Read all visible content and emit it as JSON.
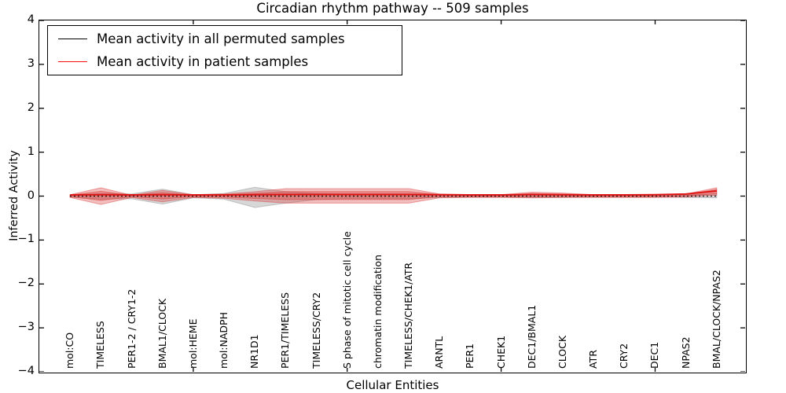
{
  "chart_data": {
    "type": "line",
    "title": "Circadian rhythm pathway -- 509 samples",
    "xlabel": "Cellular Entities",
    "ylabel": "Inferred Activity",
    "ylim": [
      -4,
      4
    ],
    "yticks": [
      4,
      3,
      2,
      1,
      0,
      -1,
      -2,
      -3,
      -4
    ],
    "x_minor_tick_positions": [
      5,
      10,
      15,
      20
    ],
    "grid": false,
    "legend_position": "upper left",
    "categories": [
      "mol:CO",
      "TIMELESS",
      "PER1-2 / CRY1-2",
      "BMAL1/CLOCK",
      "mol:HEME",
      "mol:NADPH",
      "NR1D1",
      "PER1/TIMELESS",
      "TIMELESS/CRY2",
      "S phase of mitotic cell cycle",
      "chromatin modification",
      "TIMELESS/CHEK1/ATR",
      "ARNTL",
      "PER1",
      "CHEK1",
      "DEC1/BMAL1",
      "CLOCK",
      "ATR",
      "CRY2",
      "DEC1",
      "NPAS2",
      "BMAL/CLOCK/NPAS2"
    ],
    "series": [
      {
        "name": "Mean activity in all permuted samples",
        "color": "#000000",
        "line_style": "dotted",
        "values": [
          0,
          0,
          0,
          0,
          0,
          0,
          0,
          0,
          0,
          0,
          0,
          0,
          0,
          0,
          0,
          0,
          0,
          0,
          0,
          0,
          0,
          0
        ]
      },
      {
        "name": "Mean activity in patient samples",
        "color": "#e01212",
        "line_style": "solid",
        "values": [
          0.01,
          0.015,
          0.01,
          0.015,
          0.01,
          0.01,
          0.015,
          0.02,
          0.02,
          0.02,
          0.02,
          0.02,
          0.015,
          0.01,
          0.01,
          0.02,
          0.015,
          0.01,
          0.01,
          0.015,
          0.03,
          0.1
        ]
      }
    ],
    "bands": [
      {
        "name": "permuted-samples-spread",
        "color": "#969696",
        "opacity": 0.38,
        "upper": [
          0.02,
          0.06,
          0.05,
          0.16,
          0.03,
          0.06,
          0.2,
          0.1,
          0.06,
          0.05,
          0.05,
          0.05,
          0.03,
          0.02,
          0.02,
          0.03,
          0.03,
          0.02,
          0.02,
          0.02,
          0.03,
          0.05
        ],
        "lower": [
          -0.02,
          -0.07,
          -0.06,
          -0.18,
          -0.04,
          -0.07,
          -0.26,
          -0.16,
          -0.08,
          -0.06,
          -0.06,
          -0.06,
          -0.03,
          -0.02,
          -0.02,
          -0.03,
          -0.03,
          -0.02,
          -0.02,
          -0.02,
          -0.03,
          -0.04
        ]
      },
      {
        "name": "patient-samples-spread-outer",
        "color": "#d93434",
        "opacity": 0.32,
        "upper": [
          0.03,
          0.19,
          0.02,
          0.13,
          0.03,
          0.05,
          0.1,
          0.17,
          0.17,
          0.17,
          0.17,
          0.17,
          0.05,
          0.03,
          0.03,
          0.09,
          0.07,
          0.03,
          0.03,
          0.03,
          0.05,
          0.19
        ],
        "lower": [
          -0.03,
          -0.19,
          -0.03,
          -0.13,
          -0.03,
          -0.05,
          -0.11,
          -0.16,
          -0.16,
          -0.16,
          -0.16,
          -0.16,
          -0.04,
          -0.03,
          -0.03,
          -0.04,
          -0.03,
          -0.03,
          -0.03,
          -0.03,
          -0.02,
          0.02
        ]
      },
      {
        "name": "patient-samples-spread-inner",
        "color": "#d93434",
        "opacity": 0.36,
        "upper": [
          0.021,
          0.111,
          0.016,
          0.078,
          0.021,
          0.032,
          0.062,
          0.103,
          0.103,
          0.103,
          0.103,
          0.103,
          0.034,
          0.021,
          0.021,
          0.059,
          0.045,
          0.021,
          0.021,
          0.023,
          0.041,
          0.15
        ],
        "lower": [
          -0.012,
          -0.098,
          -0.012,
          -0.065,
          -0.012,
          -0.023,
          -0.054,
          -0.079,
          -0.079,
          -0.079,
          -0.079,
          -0.079,
          -0.015,
          -0.012,
          -0.012,
          -0.013,
          -0.01,
          -0.012,
          -0.012,
          -0.01,
          0.003,
          0.056
        ]
      }
    ]
  },
  "legend": {
    "entries": [
      {
        "label": "Mean activity in all permuted samples",
        "color": "#000000"
      },
      {
        "label": "Mean activity in patient samples",
        "color": "#ff1010"
      }
    ]
  }
}
